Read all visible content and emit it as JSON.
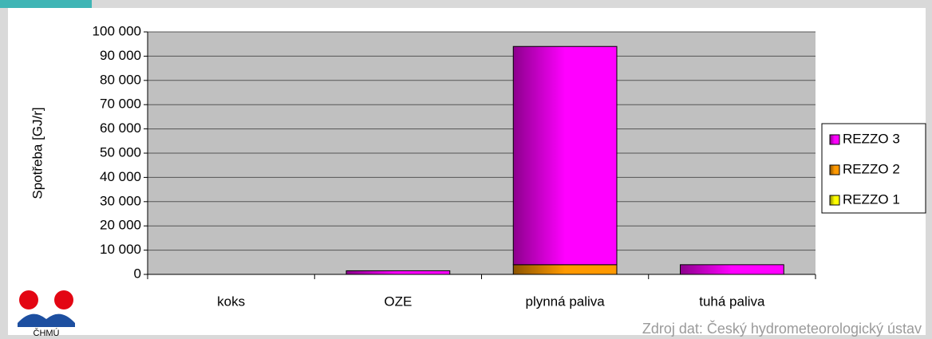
{
  "chart_data": {
    "type": "stacked_bar",
    "y_label": "Spotřeba [GJ/r]",
    "categories": [
      "koks",
      "OZE",
      "plynná paliva",
      "tuhá paliva"
    ],
    "series": [
      {
        "name": "REZZO 1",
        "color": "#ffff00",
        "values": [
          0,
          0,
          0,
          0
        ]
      },
      {
        "name": "REZZO 2",
        "color": "#ff9900",
        "values": [
          0,
          0,
          4000,
          0
        ]
      },
      {
        "name": "REZZO 3",
        "color": "#ff00ff",
        "values": [
          0,
          1500,
          90000,
          4000
        ]
      }
    ],
    "ylim": [
      0,
      100000
    ],
    "yticks": [
      0,
      {
        "value": 10000,
        "label": "10 000"
      },
      {
        "value": 20000,
        "label": "20 000"
      },
      {
        "value": 30000,
        "label": "30 000"
      },
      {
        "value": 40000,
        "label": "40 000"
      },
      {
        "value": 50000,
        "label": "50 000"
      },
      {
        "value": 60000,
        "label": "60 000"
      },
      {
        "value": 70000,
        "label": "70 000"
      },
      {
        "value": 80000,
        "label": "80 000"
      },
      {
        "value": 90000,
        "label": "90 000"
      },
      {
        "value": 100000,
        "label": "100 000"
      }
    ],
    "grid": true,
    "legend": "right",
    "source": "Zdroj dat: Český hydrometeorologický ústav",
    "logo_text": "ČHMÚ"
  }
}
